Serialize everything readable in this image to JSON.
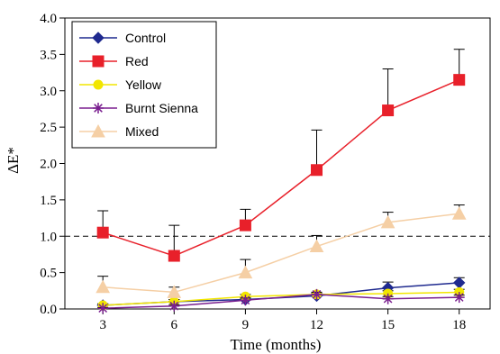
{
  "chart_data": {
    "type": "line",
    "xlabel": "Time (months)",
    "ylabel": "ΔE*",
    "x": [
      3,
      6,
      9,
      12,
      15,
      18
    ],
    "xlim": [
      1.4,
      19.3
    ],
    "ylim": [
      0,
      4
    ],
    "y_ticks": [
      "0.0",
      "0.5",
      "1.0",
      "1.5",
      "2.0",
      "2.5",
      "3.0",
      "3.5",
      "4.0"
    ],
    "x_ticks": [
      "3",
      "6",
      "9",
      "12",
      "15",
      "18"
    ],
    "reference_line": {
      "y": 1.0,
      "style": "dashed"
    },
    "legend_position": "top-left",
    "series": [
      {
        "name": "Control",
        "color": "#1f2a8f",
        "marker": "diamond",
        "values": [
          0.05,
          0.1,
          0.13,
          0.18,
          0.29,
          0.36
        ],
        "errors": [
          0.02,
          0.03,
          0.03,
          0.04,
          0.08,
          0.07
        ]
      },
      {
        "name": "Red",
        "color": "#e8202a",
        "marker": "square",
        "values": [
          1.05,
          0.73,
          1.15,
          1.91,
          2.73,
          3.15
        ],
        "errors": [
          0.3,
          0.42,
          0.22,
          0.55,
          0.57,
          0.42
        ]
      },
      {
        "name": "Yellow",
        "color": "#f2e600",
        "marker": "circle",
        "values": [
          0.05,
          0.1,
          0.17,
          0.2,
          0.21,
          0.23
        ],
        "errors": [
          0.02,
          0.03,
          0.03,
          0.03,
          0.04,
          0.04
        ]
      },
      {
        "name": "Burnt Sienna",
        "color": "#7a1f8f",
        "marker": "asterisk",
        "values": [
          0.01,
          0.04,
          0.12,
          0.2,
          0.14,
          0.16
        ],
        "errors": [
          0.01,
          0.02,
          0.03,
          0.03,
          0.03,
          0.03
        ]
      },
      {
        "name": "Mixed",
        "color": "#f5cfa5",
        "marker": "triangle",
        "values": [
          0.3,
          0.23,
          0.5,
          0.86,
          1.19,
          1.31
        ],
        "errors": [
          0.15,
          0.07,
          0.18,
          0.15,
          0.14,
          0.12
        ]
      }
    ]
  }
}
